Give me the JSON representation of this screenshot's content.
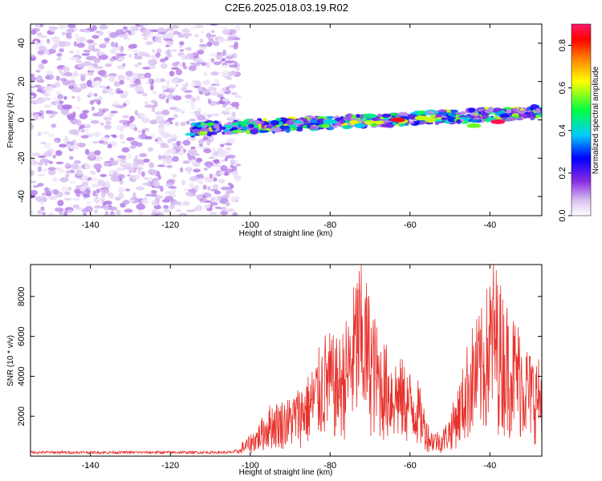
{
  "title": "C2E6.2025.018.03.19.R02",
  "colors": {
    "snr_line": "#e8322c",
    "spectro_high": "#ff1a50",
    "spectro_low": "#d8c0f0"
  },
  "chart_data": [
    {
      "type": "heatmap",
      "xlabel": "Height of straight line (km)",
      "ylabel": "Frequency (Hz)",
      "xlim": [
        -155,
        -27
      ],
      "ylim": [
        -50,
        50
      ],
      "xticks": [
        -140,
        -120,
        -100,
        -80,
        -60,
        -40
      ],
      "yticks": [
        -40,
        -20,
        0,
        20,
        40
      ],
      "colorbar": {
        "label": "Normalized spectral amplitude",
        "range": [
          0.0,
          0.9
        ],
        "ticks": [
          0.0,
          0.2,
          0.4,
          0.6,
          0.8
        ],
        "colormap": "white-violet-blue-cyan-green-yellow-red-magenta"
      },
      "regions": [
        {
          "x_range": [
            -155,
            -103
          ],
          "freq_range": [
            -50,
            50
          ],
          "amplitude": [
            0.02,
            0.12
          ],
          "note": "scattered noise"
        },
        {
          "x_range": [
            -115,
            -27
          ],
          "center_freq_start": -5,
          "center_freq_end": 4,
          "width_hz": 6,
          "amplitude": [
            0.1,
            0.9
          ]
        }
      ],
      "peaks": [
        {
          "x": -63,
          "freq": 0,
          "amplitude": 0.85
        },
        {
          "x": -38,
          "freq": -1,
          "amplitude": 0.88
        },
        {
          "x": -57,
          "freq": 1,
          "amplitude": 0.6
        },
        {
          "x": -44,
          "freq": -3,
          "amplitude": 0.55
        },
        {
          "x": -70,
          "freq": 2,
          "amplitude": 0.45
        },
        {
          "x": -80,
          "freq": -1,
          "amplitude": 0.4
        }
      ]
    },
    {
      "type": "line",
      "xlabel": "Height of straight line (km)",
      "ylabel": "SNR (10 * v/v)",
      "xlim": [
        -155,
        -27
      ],
      "ylim": [
        0,
        9600
      ],
      "xticks": [
        -140,
        -120,
        -100,
        -80,
        -60,
        -40
      ],
      "yticks": [
        2000,
        4000,
        6000,
        8000
      ],
      "series": [
        {
          "envelope_x": [
            -155,
            -105,
            -101,
            -98,
            -95,
            -90,
            -85,
            -81,
            -78,
            -75,
            -73,
            -71,
            -68,
            -65,
            -62,
            -58,
            -55,
            -52,
            -50,
            -47,
            -45,
            -42,
            -39,
            -37,
            -35,
            -33,
            -30,
            -27
          ],
          "envelope_y": [
            300,
            300,
            800,
            1500,
            2500,
            2800,
            4000,
            6000,
            5500,
            7000,
            9400,
            8500,
            6000,
            5000,
            4600,
            3600,
            1300,
            1200,
            2000,
            4000,
            6000,
            7000,
            9500,
            8000,
            7000,
            6500,
            5000,
            4500
          ]
        }
      ]
    }
  ]
}
